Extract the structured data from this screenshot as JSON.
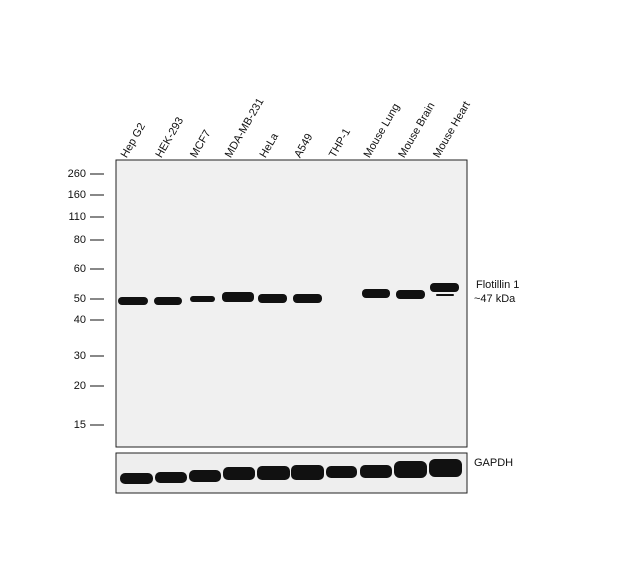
{
  "lanes": [
    "Hep G2",
    "HEK-293",
    "MCF7",
    "MDA-MB-231",
    "HeLa",
    "A549",
    "THP-1",
    "Mouse Lung",
    "Mouse Brain",
    "Mouse Heart"
  ],
  "markers": [
    260,
    160,
    110,
    80,
    60,
    50,
    40,
    30,
    20,
    15
  ],
  "target": {
    "name": "Flotillin 1",
    "size": "~47 kDa"
  },
  "loading_control": "GAPDH"
}
